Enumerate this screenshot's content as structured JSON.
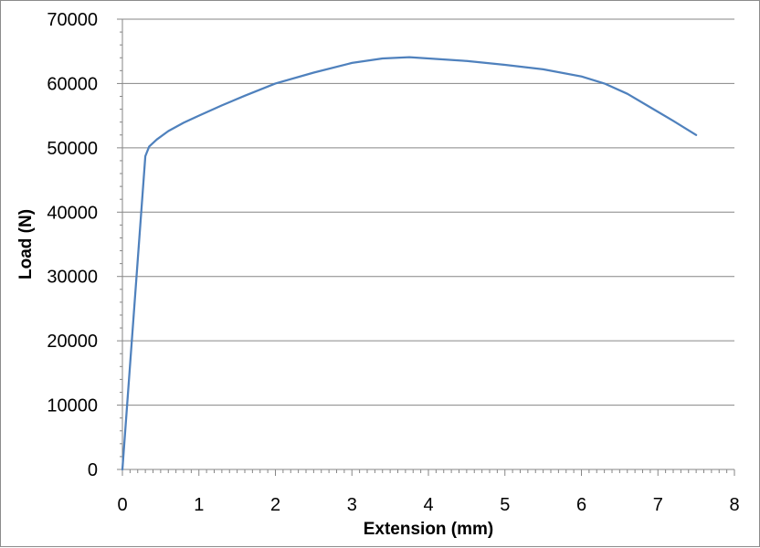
{
  "chart_data": {
    "type": "line",
    "title": "",
    "xlabel": "Extension (mm)",
    "ylabel": "Load (N)",
    "xlim": [
      0,
      8
    ],
    "ylim": [
      0,
      70000
    ],
    "x_ticks": [
      "0",
      "1",
      "2",
      "3",
      "4",
      "5",
      "6",
      "7",
      "8"
    ],
    "y_ticks": [
      "0",
      "10000",
      "20000",
      "30000",
      "40000",
      "50000",
      "60000",
      "70000"
    ],
    "grid": "horizontal",
    "legend": "none",
    "line_color": "#4f81bd",
    "series": [
      {
        "x": [
          0,
          0.3,
          0.35,
          0.45,
          0.6,
          0.8,
          1.0,
          1.3,
          1.6,
          2.0,
          2.5,
          3.0,
          3.4,
          3.75,
          4.0,
          4.5,
          5.0,
          5.5,
          6.0,
          6.3,
          6.6,
          6.9,
          7.2,
          7.5
        ],
        "y": [
          0,
          48700,
          50200,
          51300,
          52600,
          53900,
          55000,
          56600,
          58100,
          60000,
          61700,
          63200,
          63900,
          64100,
          63900,
          63500,
          62900,
          62200,
          61100,
          60000,
          58400,
          56300,
          54200,
          52000
        ]
      }
    ]
  }
}
